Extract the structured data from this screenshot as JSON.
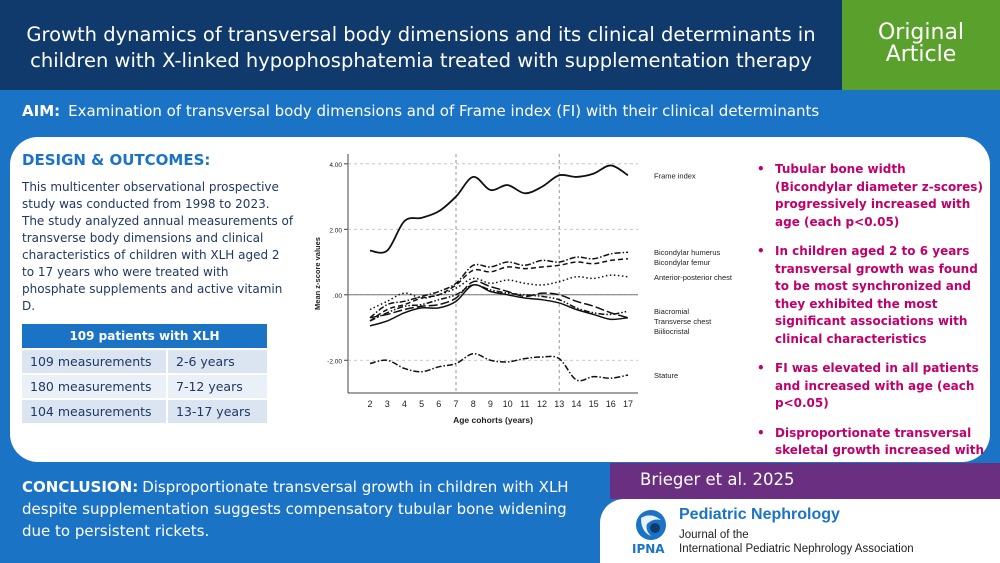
{
  "header": {
    "title_line1": "Growth dynamics of transversal body dimensions and its clinical determinants in",
    "title_line2": "children with X-linked hypophosphatemia treated with supplementation therapy",
    "badge_line1": "Original",
    "badge_line2": "Article"
  },
  "aim": {
    "label": "AIM:",
    "text": "Examination of transversal body dimensions and of Frame index (FI) with their clinical determinants"
  },
  "design": {
    "heading": "DESIGN & OUTCOMES",
    "heading_suffix": ":",
    "text": "This multicenter observational prospective study was conducted from 1998 to 2023. The study analyzed annual measurements of transverse body dimensions and clinical characteristics of children with XLH aged 2 to 17 years who were treated with phosphate supplements and active vitamin D."
  },
  "patients_table": {
    "header": "109 patients with XLH",
    "rows": [
      {
        "measurements": "109 measurements",
        "ages": "2-6 years"
      },
      {
        "measurements": "180 measurements",
        "ages": "7-12 years"
      },
      {
        "measurements": "104 measurements",
        "ages": "13-17 years"
      }
    ]
  },
  "chart_data": {
    "type": "line",
    "xlabel": "Age cohorts (years)",
    "ylabel": "Mean z-score values",
    "x": [
      2,
      3,
      4,
      5,
      6,
      7,
      8,
      9,
      10,
      11,
      12,
      13,
      14,
      15,
      16,
      17
    ],
    "x_ticks": [
      "2",
      "3",
      "4",
      "5",
      "6",
      "7",
      "8",
      "9",
      "10",
      "11",
      "12",
      "13",
      "14",
      "15",
      "16",
      "17"
    ],
    "ylim": [
      -3.0,
      4.3
    ],
    "y_ticks": [
      4.0,
      2.0,
      0.0,
      -2.0
    ],
    "y_tick_labels": [
      "4.00",
      "2.00",
      ".00",
      "-2.00"
    ],
    "reference_lines_x": [
      7,
      13
    ],
    "reference_line_y": 0,
    "series": [
      {
        "name": "Frame index",
        "style": "solid",
        "values": [
          1.35,
          1.35,
          2.25,
          2.35,
          2.55,
          3.0,
          3.6,
          3.2,
          3.35,
          3.1,
          3.3,
          3.65,
          3.6,
          3.7,
          3.95,
          3.65
        ]
      },
      {
        "name": "Bicondylar humerus",
        "style": "dashdot",
        "values": [
          -0.7,
          -0.3,
          -0.2,
          -0.05,
          0.1,
          0.35,
          0.9,
          0.85,
          1.0,
          0.9,
          1.05,
          1.0,
          1.15,
          1.1,
          1.25,
          1.3
        ]
      },
      {
        "name": "Bicondylar femur",
        "style": "dash",
        "values": [
          -0.8,
          -0.45,
          -0.3,
          -0.1,
          0.0,
          0.3,
          0.75,
          0.7,
          0.85,
          0.8,
          0.85,
          0.9,
          1.0,
          0.95,
          1.05,
          1.1
        ]
      },
      {
        "name": "Anterior-posterior chest",
        "style": "dot",
        "values": [
          -0.45,
          -0.2,
          0.05,
          -0.1,
          0.0,
          0.2,
          0.5,
          0.35,
          0.45,
          0.35,
          0.3,
          0.4,
          0.55,
          0.5,
          0.6,
          0.55
        ]
      },
      {
        "name": "Biacromial",
        "style": "dashdotdot",
        "values": [
          -0.8,
          -0.55,
          -0.35,
          -0.3,
          -0.15,
          0.0,
          0.3,
          0.15,
          0.05,
          0.0,
          -0.05,
          -0.15,
          -0.4,
          -0.55,
          -0.6,
          -0.5
        ]
      },
      {
        "name": "Transverse chest",
        "style": "longdash",
        "values": [
          -0.7,
          -0.6,
          -0.45,
          -0.35,
          -0.3,
          -0.1,
          0.4,
          0.25,
          0.1,
          -0.05,
          0.05,
          0.0,
          -0.2,
          -0.35,
          -0.55,
          -0.7
        ]
      },
      {
        "name": "Biiliocristal",
        "style": "solid",
        "values": [
          -0.95,
          -0.8,
          -0.55,
          -0.4,
          -0.4,
          -0.2,
          0.3,
          0.1,
          0.0,
          -0.1,
          -0.15,
          -0.25,
          -0.45,
          -0.6,
          -0.75,
          -0.7
        ]
      },
      {
        "name": "Stature",
        "style": "dashdot",
        "values": [
          -2.1,
          -2.0,
          -2.25,
          -2.35,
          -2.2,
          -2.1,
          -1.8,
          -2.0,
          -2.05,
          -1.95,
          -1.9,
          -1.95,
          -2.6,
          -2.5,
          -2.55,
          -2.45
        ]
      }
    ],
    "colors": {
      "line": "#111111",
      "axis": "#444444"
    }
  },
  "results": [
    "Tubular bone width (Bicondylar diameter z-scores) progressively increased with age (each p<0.05)",
    "In children aged 2 to 6 years transversal growth was found to be most synchronized and they exhibited the most significant associations with clinical characteristics",
    "FI was elevated in all patients and increased with age (each p<0.05)",
    "Disproportionate transversal skeletal growth increased with age"
  ],
  "conclusion": {
    "label": "CONCLUSION:",
    "text": "Disproportionate transversal growth in children with XLH despite supplementation suggests compensatory tubular bone widening due to persistent rickets."
  },
  "citation": "Brieger et al. 2025",
  "journal": {
    "name": "Pediatric Nephrology",
    "line2": "Journal of the",
    "line3": "International Pediatric Nephrology Association",
    "logo_text": "IPNA"
  },
  "colors": {
    "header_bg": "#0f3a6b",
    "badge_bg": "#5aa02c",
    "accent_blue": "#1b73c6",
    "result_magenta": "#c0006b",
    "citation_bg": "#6b2f82"
  }
}
